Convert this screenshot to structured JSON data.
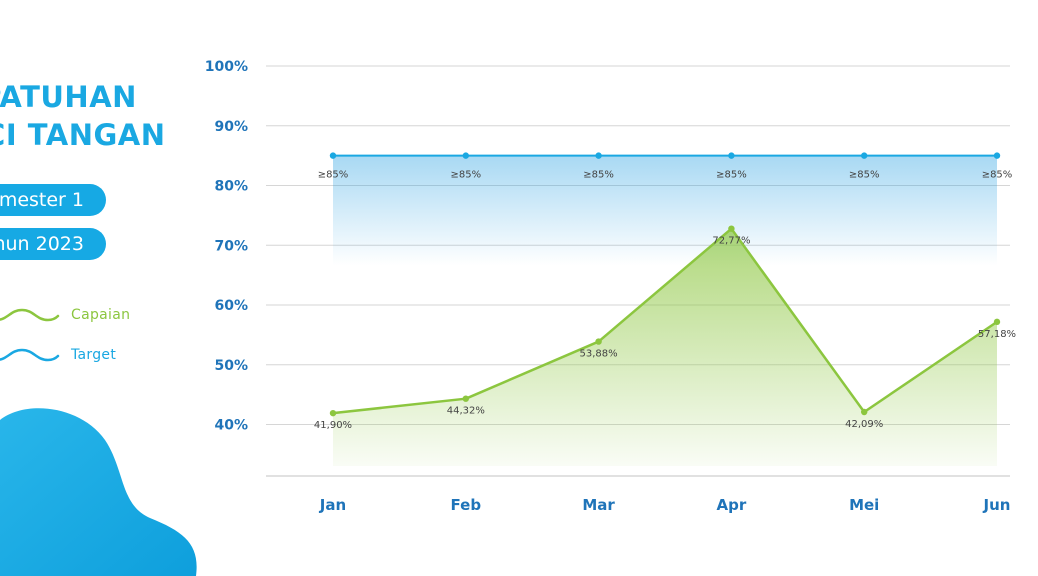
{
  "title": {
    "line1": "EPATUHAN",
    "line2": "UCI TANGAN"
  },
  "badges": {
    "semester": "mester 1",
    "year": "hun 2023"
  },
  "legend": [
    {
      "label": "Capaian",
      "color": "#8cc63f",
      "icon": "wave-line-icon"
    },
    {
      "label": "Target",
      "color": "#1aa8e2",
      "icon": "wave-line-icon"
    }
  ],
  "colors": {
    "brand": "#1aa8e2",
    "axis_text": "#1f74b9",
    "capaian": "#8cc63f",
    "target": "#1aa8e2"
  },
  "chart_data": {
    "type": "line",
    "categories": [
      "Jan",
      "Feb",
      "Mar",
      "Apr",
      "Mei",
      "Jun"
    ],
    "y_ticks": [
      "100%",
      "90%",
      "80%",
      "70%",
      "60%",
      "50%",
      "40%"
    ],
    "ylim": [
      30,
      100
    ],
    "grid": true,
    "legend_position": "left",
    "series": [
      {
        "name": "Capaian",
        "values": [
          41.9,
          44.32,
          53.88,
          72.77,
          42.09,
          57.18
        ],
        "labels": [
          "41,90%",
          "44,32%",
          "53,88%",
          "72,77%",
          "42,09%",
          "57,18%"
        ]
      },
      {
        "name": "Target",
        "values": [
          85,
          85,
          85,
          85,
          85,
          85
        ],
        "labels": [
          "≥85%",
          "≥85%",
          "≥85%",
          "≥85%",
          "≥85%",
          "≥85%"
        ]
      }
    ]
  }
}
